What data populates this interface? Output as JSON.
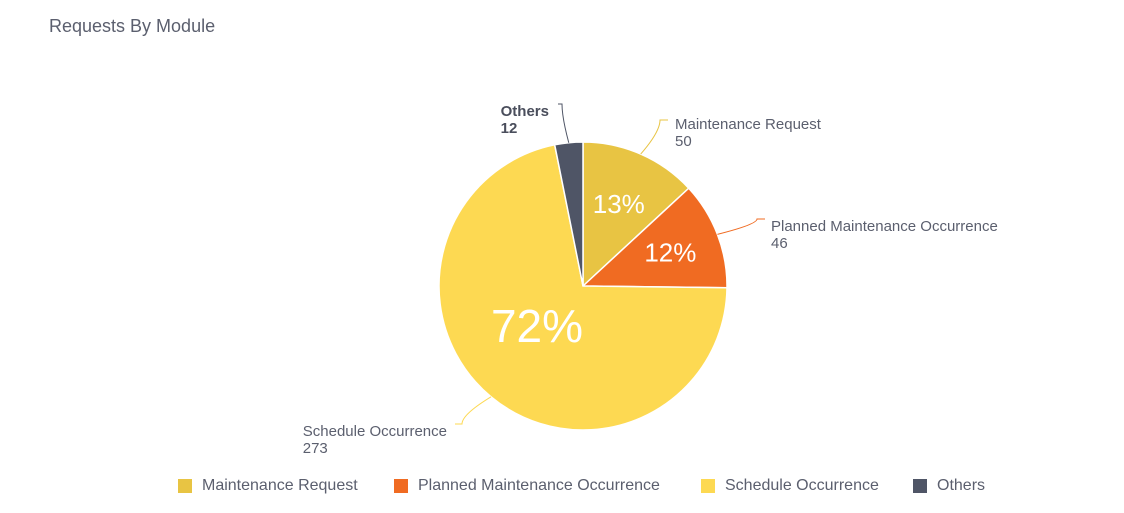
{
  "title": "Requests By Module",
  "chart_data": {
    "type": "pie",
    "title": "Requests By Module",
    "slices": [
      {
        "name": "Maintenance Request",
        "value": 50,
        "percent_label": "13%",
        "color": "#e8c443"
      },
      {
        "name": "Planned Maintenance Occurrence",
        "value": 46,
        "percent_label": "12%",
        "color": "#f06b22"
      },
      {
        "name": "Schedule Occurrence",
        "value": 273,
        "percent_label": "72%",
        "color": "#fdd952"
      },
      {
        "name": "Others",
        "value": 12,
        "percent_label": "",
        "color": "#4f5566"
      }
    ],
    "legend_position": "bottom"
  },
  "legend": [
    {
      "label": "Maintenance Request",
      "color": "#e8c443"
    },
    {
      "label": "Planned Maintenance Occurrence",
      "color": "#f06b22"
    },
    {
      "label": "Schedule Occurrence",
      "color": "#fdd952"
    },
    {
      "label": "Others",
      "color": "#4f5566"
    }
  ]
}
